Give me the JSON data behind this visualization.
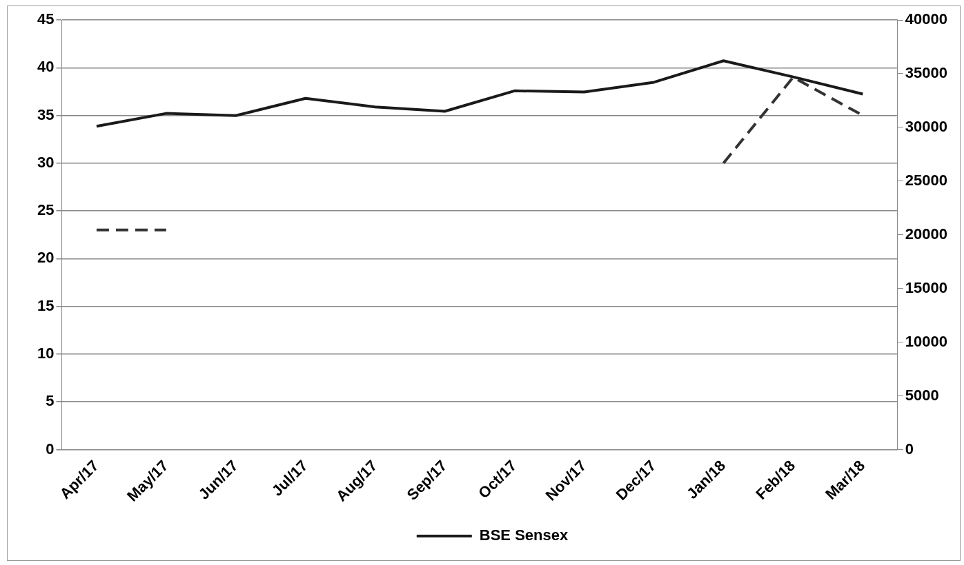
{
  "chart_data": {
    "type": "line",
    "categories": [
      "Apr/17",
      "May/17",
      "Jun/17",
      "Jul/17",
      "Aug/17",
      "Sep/17",
      "Oct/17",
      "Nov/17",
      "Dec/17",
      "Jan/18",
      "Feb/18",
      "Mar/18"
    ],
    "series": [
      {
        "color": "#333333",
        "line_style": "dashed",
        "values": [
          23,
          23,
          null,
          null,
          null,
          null,
          null,
          null,
          null,
          30,
          39,
          35
        ]
      },
      {
        "name": "BSE Sensex",
        "color": "#1a1a1a",
        "line_style": "solid",
        "axis": "y2",
        "values": [
          30100,
          31300,
          31100,
          32700,
          31900,
          31500,
          33400,
          33300,
          34200,
          36200,
          34700,
          33100
        ]
      }
    ],
    "ylim": [
      0,
      45
    ],
    "yticks": [
      0,
      5,
      10,
      15,
      20,
      25,
      30,
      35,
      40,
      45
    ],
    "y2lim": [
      0,
      40000
    ],
    "y2ticks": [
      0,
      5000,
      10000,
      15000,
      20000,
      25000,
      30000,
      35000,
      40000
    ],
    "grid": "y",
    "legend": "bottom",
    "marker": "none"
  }
}
